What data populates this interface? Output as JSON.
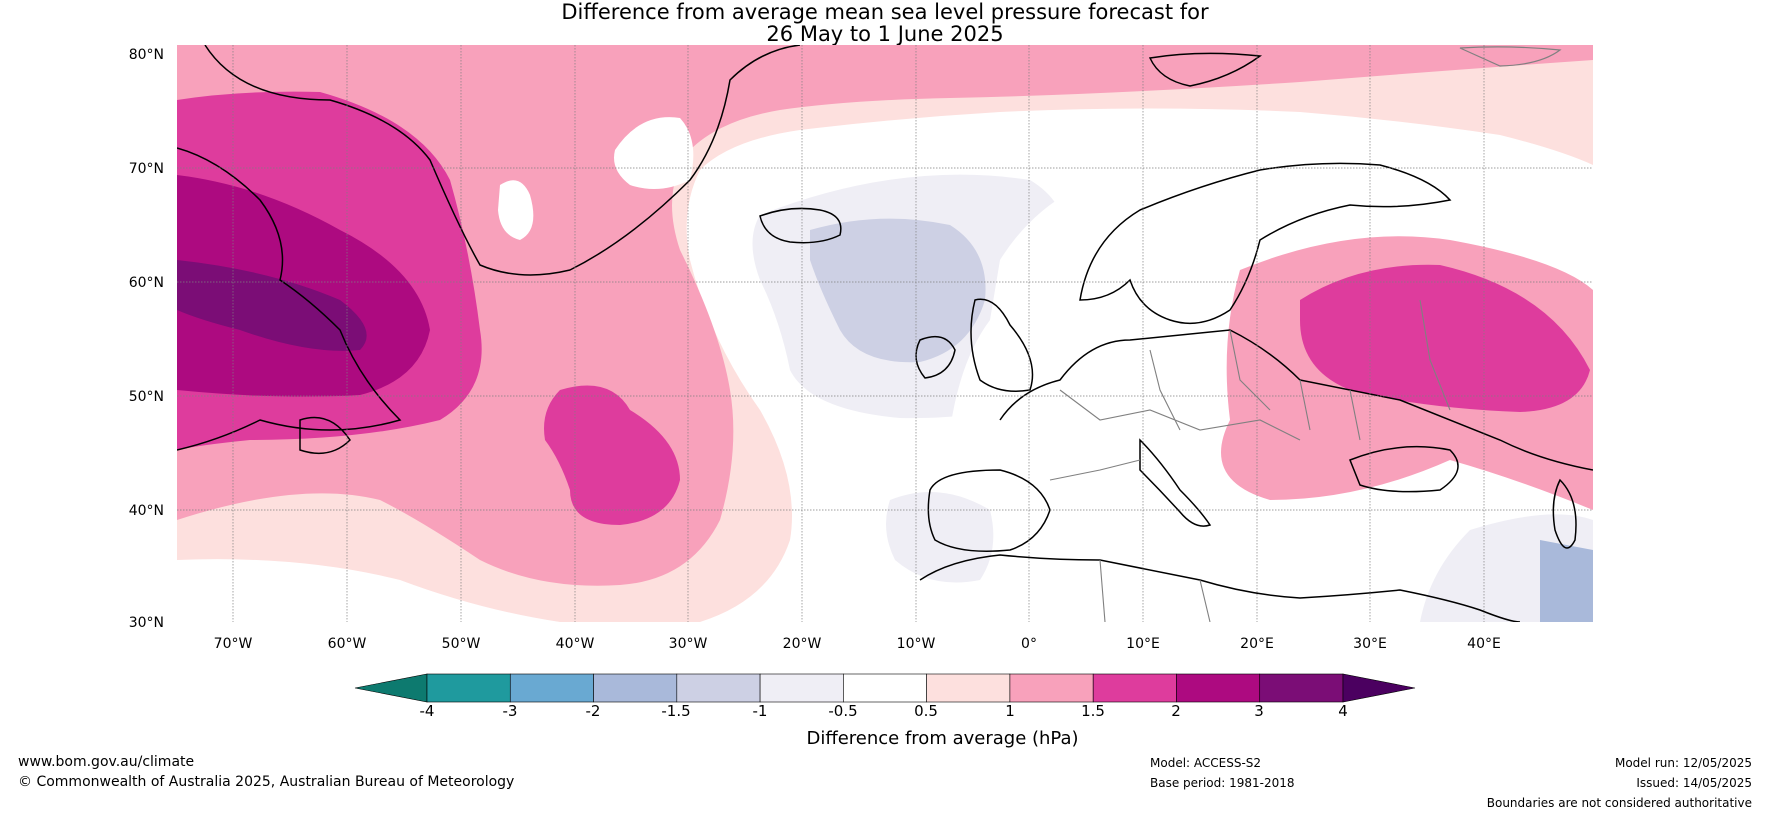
{
  "title": {
    "line1": "Difference from average mean sea level pressure forecast for",
    "line2": "26 May to 1 June 2025"
  },
  "map": {
    "region": "North Atlantic and Europe",
    "lat_labels": [
      "80°N",
      "70°N",
      "60°N",
      "50°N",
      "40°N",
      "30°N"
    ],
    "lon_labels": [
      "70°W",
      "60°W",
      "50°W",
      "40°W",
      "30°W",
      "20°W",
      "10°W",
      "0°",
      "10°E",
      "20°E",
      "30°E",
      "40°E"
    ],
    "features": {
      "high_anomaly_west": "Labrador / Newfoundland strong positive anomaly",
      "high_anomaly_east": "Western Russia positive anomaly",
      "low_anomaly": "South of Iceland / west of Ireland negative anomaly"
    }
  },
  "colorbar": {
    "labels": [
      "-4",
      "-3",
      "-2",
      "-1.5",
      "-1",
      "-0.5",
      "0.5",
      "1",
      "1.5",
      "2",
      "3",
      "4"
    ],
    "colors": [
      "#0d7a6f",
      "#1f9a9e",
      "#69a9d2",
      "#a9b9da",
      "#cdd0e4",
      "#efeef5",
      "#ffffff",
      "#fde0de",
      "#f8a1bb",
      "#de3c9d",
      "#ad0a80",
      "#7b0d76",
      "#4b0060"
    ],
    "title": "Difference from average (hPa)"
  },
  "footer": {
    "website": "www.bom.gov.au/climate",
    "copyright": "© Commonwealth of Australia 2025, Australian Bureau of Meteorology",
    "model": "Model: ACCESS-S2",
    "base_period": "Base period: 1981-2018",
    "model_run": "Model run: 12/05/2025",
    "issued": "Issued: 14/05/2025",
    "disclaimer": "Boundaries are not considered authoritative"
  }
}
